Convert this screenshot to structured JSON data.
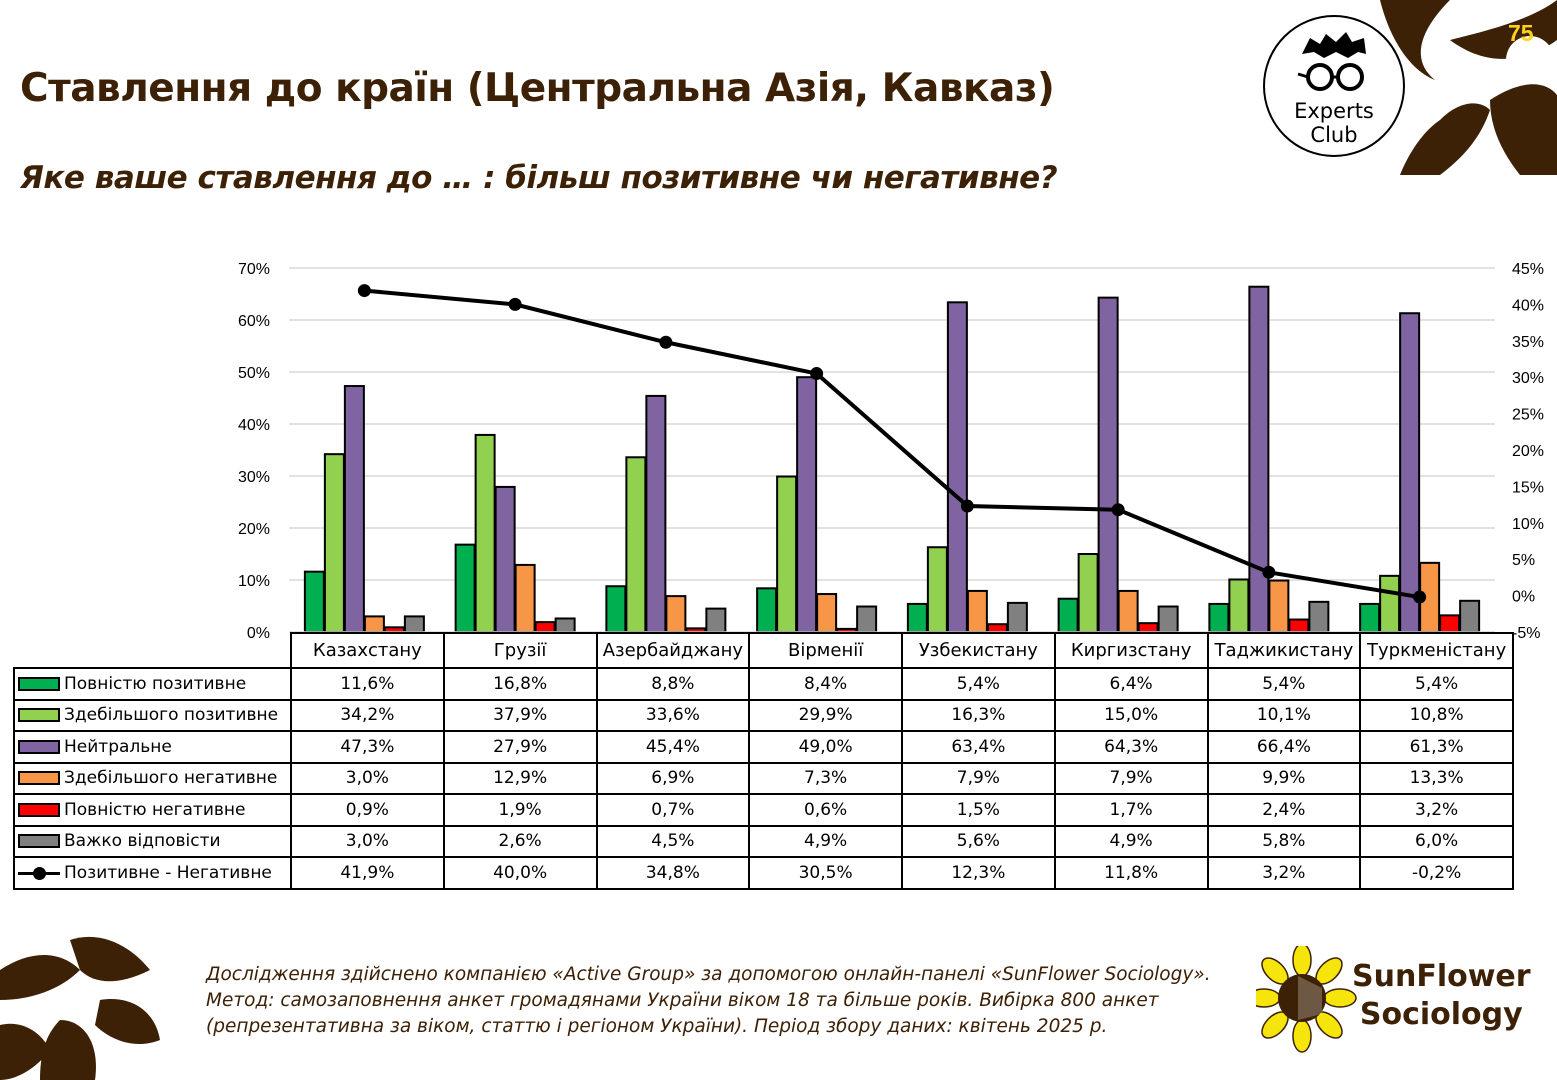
{
  "header": {
    "title": "Ставлення до країн (Центральна Азія, Кавказ)",
    "subtitle": "Яке ваше ставлення до … : більш позитивне чи негативне?",
    "page_number": "75",
    "experts_logo": {
      "line1": "Experts",
      "line2": "Club"
    }
  },
  "colors": {
    "brand_brown": "#3d2106",
    "page_number": "#ffd21a"
  },
  "chart_data": {
    "type": "bar",
    "categories": [
      "Казахстану",
      "Грузії",
      "Азербайджану",
      "Вірменії",
      "Узбекистану",
      "Киргизстану",
      "Таджикистану",
      "Туркменістану"
    ],
    "ylim": [
      0,
      70
    ],
    "y_ticks": [
      "0%",
      "10%",
      "20%",
      "30%",
      "40%",
      "50%",
      "60%",
      "70%"
    ],
    "y2lim": [
      -5,
      45
    ],
    "y2_ticks": [
      "-5%",
      "0%",
      "5%",
      "10%",
      "15%",
      "20%",
      "25%",
      "30%",
      "35%",
      "40%",
      "45%"
    ],
    "grid": true,
    "legend_placement": "table-left",
    "series": [
      {
        "name": "Повністю позитивне",
        "type": "bar",
        "color": "#00b050",
        "values": [
          11.6,
          16.8,
          8.8,
          8.4,
          5.4,
          6.4,
          5.4,
          5.4
        ],
        "labels": [
          "11,6%",
          "16,8%",
          "8,8%",
          "8,4%",
          "5,4%",
          "6,4%",
          "5,4%",
          "5,4%"
        ]
      },
      {
        "name": "Здебільшого позитивне",
        "type": "bar",
        "color": "#92d050",
        "values": [
          34.2,
          37.9,
          33.6,
          29.9,
          16.3,
          15.0,
          10.1,
          10.8
        ],
        "labels": [
          "34,2%",
          "37,9%",
          "33,6%",
          "29,9%",
          "16,3%",
          "15,0%",
          "10,1%",
          "10,8%"
        ]
      },
      {
        "name": "Нейтральне",
        "type": "bar",
        "color": "#8064a2",
        "values": [
          47.3,
          27.9,
          45.4,
          49.0,
          63.4,
          64.3,
          66.4,
          61.3
        ],
        "labels": [
          "47,3%",
          "27,9%",
          "45,4%",
          "49,0%",
          "63,4%",
          "64,3%",
          "66,4%",
          "61,3%"
        ]
      },
      {
        "name": "Здебільшого негативне",
        "type": "bar",
        "color": "#f79646",
        "values": [
          3.0,
          12.9,
          6.9,
          7.3,
          7.9,
          7.9,
          9.9,
          13.3
        ],
        "labels": [
          "3,0%",
          "12,9%",
          "6,9%",
          "7,3%",
          "7,9%",
          "7,9%",
          "9,9%",
          "13,3%"
        ]
      },
      {
        "name": "Повністю негативне",
        "type": "bar",
        "color": "#ff0000",
        "values": [
          0.9,
          1.9,
          0.7,
          0.6,
          1.5,
          1.7,
          2.4,
          3.2
        ],
        "labels": [
          "0,9%",
          "1,9%",
          "0,7%",
          "0,6%",
          "1,5%",
          "1,7%",
          "2,4%",
          "3,2%"
        ]
      },
      {
        "name": "Важко відповісти",
        "type": "bar",
        "color": "#808080",
        "values": [
          3.0,
          2.6,
          4.5,
          4.9,
          5.6,
          4.9,
          5.8,
          6.0
        ],
        "labels": [
          "3,0%",
          "2,6%",
          "4,5%",
          "4,9%",
          "5,6%",
          "4,9%",
          "5,8%",
          "6,0%"
        ]
      },
      {
        "name": "Позитивне - Негативне",
        "type": "line",
        "axis": "secondary",
        "color": "#000000",
        "values": [
          41.9,
          40.0,
          34.8,
          30.5,
          12.3,
          11.8,
          3.2,
          -0.2
        ],
        "labels": [
          "41,9%",
          "40,0%",
          "34,8%",
          "30,5%",
          "12,3%",
          "11,8%",
          "3,2%",
          "-0,2%"
        ]
      }
    ]
  },
  "footer": {
    "note": "Дослідження здійснено компанією «Active Group» за допомогою онлайн-панелі «SunFlower Sociology». Метод: самозаповнення анкет громадянами України віком 18 та більше років. Вибірка 800 анкет (репрезентативна за віком, статтю і регіоном України). Період збору даних: квітень 2025 р.",
    "brand_line1": "SunFlower",
    "brand_line2": "Sociology"
  }
}
